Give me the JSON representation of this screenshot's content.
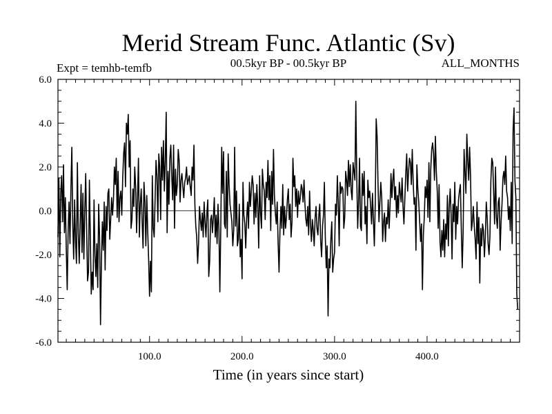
{
  "chart_data": {
    "type": "line",
    "title": "Merid Stream Func. Atlantic (Sv)",
    "experiment_label": "Expt = temhb-temfb",
    "period_label": "00.5kyr BP - 00.5kyr BP",
    "season_label": "ALL_MONTHS",
    "xlabel": "Time (in years since start)",
    "ylabel": "",
    "xlim": [
      1,
      500
    ],
    "ylim": [
      -6.0,
      6.0
    ],
    "x_ticks": [
      100,
      200,
      300,
      400
    ],
    "x_tick_labels": [
      "100.0",
      "200.0",
      "300.0",
      "400.0"
    ],
    "y_ticks": [
      6,
      4,
      2,
      0,
      -2,
      -4,
      -6
    ],
    "y_tick_labels": [
      "6.0",
      "4.0",
      "2.0",
      "0.0",
      "-2.0",
      "-4.0",
      "-6.0"
    ],
    "zero_line": true,
    "series": [
      {
        "name": "Merid Stream Func. Atlantic",
        "x_start": 1,
        "x_step": 1,
        "values": [
          -1.2,
          1.5,
          -2.1,
          0.8,
          1.6,
          -0.5,
          2.1,
          -1.0,
          0.6,
          -1.8,
          -3.6,
          -0.9,
          0.4,
          -1.5,
          1.0,
          2.9,
          -0.6,
          -2.2,
          0.5,
          -1.4,
          -2.4,
          2.2,
          -1.0,
          -2.4,
          -0.5,
          1.2,
          -1.9,
          0.8,
          -2.2,
          0.0,
          1.7,
          -0.8,
          -3.2,
          -2.8,
          1.4,
          -1.2,
          -3.8,
          -2.8,
          -3.6,
          0.5,
          -2.0,
          -3.0,
          -1.5,
          -3.5,
          0.3,
          -1.2,
          -5.2,
          -2.3,
          -0.5,
          -1.8,
          0.4,
          -2.7,
          0.2,
          -0.9,
          0.8,
          1.0,
          -1.3,
          -0.4,
          0.6,
          -0.2,
          0.5,
          2.0,
          1.2,
          2.4,
          -0.3,
          1.8,
          -0.5,
          0.6,
          0.9,
          -0.2,
          1.5,
          2.6,
          3.1,
          1.1,
          4.0,
          3.5,
          4.4,
          2.0,
          3.2,
          -0.8,
          -0.4,
          1.0,
          0.2,
          2.0,
          1.1,
          -1.0,
          0.5,
          2.4,
          -1.2,
          0.3,
          1.0,
          -0.5,
          -1.7,
          1.3,
          0.4,
          -1.6,
          0.7,
          -0.9,
          -2.2,
          -3.9,
          -2.3,
          -3.7,
          1.6,
          -0.8,
          -1.2,
          0.5,
          2.3,
          1.6,
          -0.5,
          2.6,
          2.0,
          -0.4,
          2.9,
          1.4,
          3.2,
          0.9,
          2.3,
          4.5,
          -1.0,
          1.8,
          0.3,
          2.4,
          3.0,
          1.6,
          0.5,
          3.0,
          -0.8,
          1.9,
          0.7,
          1.2,
          2.8,
          2.3,
          0.4,
          1.4,
          1.7,
          1.1,
          0.6,
          1.3,
          1.5,
          2.0,
          1.2,
          1.4,
          1.6,
          1.1,
          0.7,
          2.0,
          1.4,
          3.0,
          0.3,
          -0.7,
          -1.2,
          -2.4,
          -1.5,
          0.2,
          -0.4,
          -0.9,
          -0.1,
          -1.2,
          0.4,
          -0.5,
          -1.2,
          -0.1,
          0.5,
          -3.0,
          -2.3,
          -0.4,
          -0.2,
          -1.0,
          -0.3,
          0.6,
          -1.2,
          -0.2,
          -1.5,
          0.3,
          -0.8,
          -3.7,
          -0.8,
          2.9,
          0.8,
          2.7,
          -0.6,
          -0.8,
          1.8,
          -1.2,
          2.6,
          1.2,
          0.3,
          -0.1,
          -0.5,
          -1.6,
          -0.9,
          2.9,
          -0.7,
          0.9,
          -1.6,
          -1.3,
          0.3,
          -2.1,
          -1.3,
          -3.1,
          1.3,
          -0.2,
          -0.6,
          -1.7,
          -0.3,
          0.4,
          -0.8,
          1.3,
          0.2,
          0.9,
          1.6,
          1.2,
          -0.6,
          0.8,
          -0.3,
          1.2,
          0.2,
          -1.7,
          1.6,
          -0.1,
          -0.8,
          1.9,
          1.2,
          0.9,
          -0.4,
          1.3,
          0.6,
          2.3,
          0.5,
          1.6,
          -0.9,
          1.8,
          0.3,
          2.8,
          0.7,
          -0.1,
          -0.6,
          0.4,
          -1.5,
          -2.8,
          -0.9,
          0.2,
          -0.8,
          1.2,
          -1.1,
          0.2,
          -0.8,
          -0.3,
          0.5,
          1.0,
          -0.4,
          0.3,
          -1.2,
          -0.5,
          2.4,
          1.1,
          1.6,
          0.2,
          1.0,
          -0.3,
          0.9,
          0.3,
          0.6,
          1.2,
          1.0,
          0.4,
          1.4,
          0.3,
          -0.4,
          -0.7,
          0.2,
          -1.1,
          0.9,
          -0.6,
          -1.4,
          -0.4,
          -0.9,
          -1.6,
          -0.3,
          0.2,
          -0.8,
          -1.1,
          -0.2,
          0.3,
          -1.4,
          -2.1,
          -0.7,
          -0.2,
          1.3,
          -1.2,
          -2.6,
          -1.6,
          -4.8,
          -2.2,
          -2.6,
          -1.3,
          -0.5,
          -2.8,
          -2.2,
          -1.9,
          0.3,
          -0.2,
          1.6,
          0.4,
          -1.6,
          1.3,
          0.8,
          1.1,
          1.0,
          -0.8,
          -0.3,
          1.8,
          1.4,
          0.7,
          2.3,
          1.1,
          2.1,
          0.9,
          0.5,
          2.2,
          1.8,
          1.4,
          5.0,
          1.6,
          -0.8,
          0.4,
          2.4,
          -0.7,
          -0.9,
          1.7,
          0.7,
          1.8,
          -0.6,
          0.2,
          -1.5,
          1.4,
          0.6,
          0.9,
          0.2,
          -0.6,
          0.8,
          -0.4,
          -1.6,
          0.3,
          4.2,
          3.4,
          1.2,
          -0.5,
          0.4,
          1.3,
          0.6,
          -1.4,
          -0.5,
          -0.1,
          -1.4,
          -0.3,
          -0.6,
          0.5,
          -0.8,
          0.2,
          1.7,
          0.6,
          1.4,
          1.9,
          0.5,
          1.1,
          -0.3,
          0.7,
          -0.1,
          1.3,
          0.8,
          0.4,
          1.5,
          0.2,
          -0.6,
          0.6,
          1.7,
          2.6,
          0.9,
          1.8,
          2.4,
          2.2,
          1.2,
          2.8,
          1.3,
          0.3,
          0.6,
          -1.8,
          2.1,
          1.0,
          0.4,
          -0.5,
          -1.4,
          -0.6,
          -3.6,
          -1.1,
          -0.3,
          1.1,
          0.6,
          1.4,
          -0.3,
          2.2,
          -0.5,
          1.9,
          2.8,
          3.1,
          2.6,
          1.4,
          3.4,
          1.8,
          0.9,
          -0.8,
          1.2,
          -1.4,
          -2.1,
          -0.9,
          -1.8,
          -0.4,
          -2.1,
          -0.6,
          -1.3,
          0.7,
          -1.6,
          0.2,
          1.0,
          -0.2,
          -2.2,
          0.3,
          -0.5,
          1.3,
          -1.3,
          0.2,
          -0.6,
          0.5,
          0.9,
          1.2,
          -0.8,
          -2.6,
          -1.0,
          2.8,
          1.8,
          0.8,
          3.5,
          2.3,
          1.4,
          2.9,
          1.6,
          -0.9,
          -0.5,
          0.2,
          -0.7,
          -1.3,
          -2.2,
          0.4,
          -1.5,
          -0.3,
          -3.3,
          -0.8,
          -1.6,
          -0.6,
          -0.9,
          -2.1,
          -1.2,
          0.4,
          -0.3,
          -1.5,
          -2.0,
          -1.1,
          1.4,
          2.4,
          2.2,
          0.8,
          -0.6,
          2.0,
          -0.3,
          -0.8,
          0.4,
          0.6,
          -1.8,
          -0.5,
          0.3,
          1.5,
          1.8,
          1.2,
          2.5,
          0.9,
          0.6,
          -0.4,
          0.2,
          -0.9,
          1.3,
          -1.5,
          3.7,
          4.7,
          1.4,
          0.6,
          -3.8,
          -4.5
        ]
      }
    ]
  }
}
